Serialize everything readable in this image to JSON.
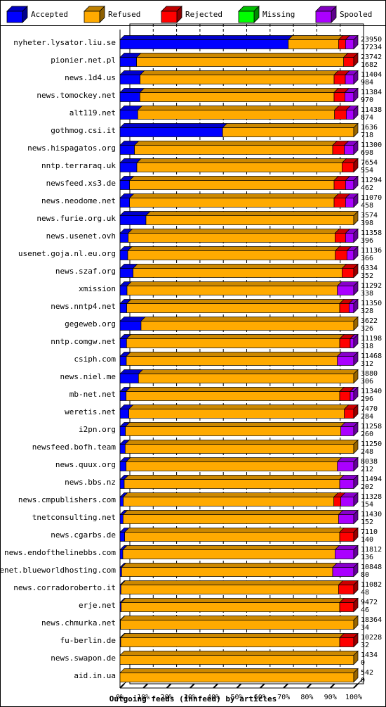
{
  "chart_data": {
    "type": "bar",
    "orientation": "horizontal",
    "stacked": true,
    "percent": true,
    "xlabel": "Outgoing feeds (innfeed) by articles",
    "xlim": [
      0,
      100
    ],
    "xticks": [
      "0%",
      "10%",
      "20%",
      "30%",
      "40%",
      "50%",
      "60%",
      "70%",
      "80%",
      "90%",
      "100%"
    ],
    "legend_position": "top",
    "legend": [
      {
        "name": "Accepted",
        "color": "#0000ff"
      },
      {
        "name": "Refused",
        "color": "#ffaa00"
      },
      {
        "name": "Rejected",
        "color": "#ff0000"
      },
      {
        "name": "Missing",
        "color": "#00ff00"
      },
      {
        "name": "Spooled",
        "color": "#aa00ff"
      }
    ],
    "rows": [
      {
        "name": "nyheter.lysator.liu.se",
        "total": 23950,
        "accepted": 17234,
        "segments": [
          72,
          21.5,
          3.0,
          0,
          3.5
        ]
      },
      {
        "name": "pionier.net.pl",
        "total": 23742,
        "accepted": 1682,
        "segments": [
          7.1,
          88.6,
          4.3,
          0,
          0
        ]
      },
      {
        "name": "news.1d4.us",
        "total": 11404,
        "accepted": 984,
        "segments": [
          8.6,
          83.0,
          4.8,
          0,
          3.6
        ]
      },
      {
        "name": "news.tomockey.net",
        "total": 11384,
        "accepted": 970,
        "segments": [
          8.5,
          83.1,
          4.6,
          0,
          3.8
        ]
      },
      {
        "name": "alt119.net",
        "total": 11438,
        "accepted": 874,
        "segments": [
          7.6,
          84.2,
          5.0,
          0,
          3.2
        ]
      },
      {
        "name": "gothmog.csi.it",
        "total": 1636,
        "accepted": 718,
        "segments": [
          43.9,
          56.1,
          0,
          0,
          0
        ]
      },
      {
        "name": "news.hispagatos.org",
        "total": 11300,
        "accepted": 698,
        "segments": [
          6.2,
          84.8,
          5.0,
          0,
          4.0
        ]
      },
      {
        "name": "nntp.terraraq.uk",
        "total": 7654,
        "accepted": 554,
        "segments": [
          7.2,
          87.8,
          5.0,
          0,
          0
        ]
      },
      {
        "name": "newsfeed.xs3.de",
        "total": 11294,
        "accepted": 462,
        "segments": [
          4.1,
          87.5,
          4.9,
          0,
          3.5
        ]
      },
      {
        "name": "news.neodome.net",
        "total": 11070,
        "accepted": 458,
        "segments": [
          4.1,
          87.5,
          4.9,
          0,
          3.5
        ]
      },
      {
        "name": "news.furie.org.uk",
        "total": 3574,
        "accepted": 398,
        "segments": [
          11.1,
          88.9,
          0,
          0,
          0
        ]
      },
      {
        "name": "news.usenet.ovh",
        "total": 11358,
        "accepted": 396,
        "segments": [
          3.5,
          88.5,
          4.5,
          0,
          3.5
        ]
      },
      {
        "name": "usenet.goja.nl.eu.org",
        "total": 11136,
        "accepted": 366,
        "segments": [
          3.3,
          88.8,
          5.0,
          0,
          2.9
        ]
      },
      {
        "name": "news.szaf.org",
        "total": 6334,
        "accepted": 352,
        "segments": [
          5.6,
          89.4,
          5.0,
          0,
          0
        ]
      },
      {
        "name": "xmission",
        "total": 11292,
        "accepted": 338,
        "segments": [
          3.0,
          90.0,
          0,
          0,
          7.0
        ]
      },
      {
        "name": "news.nntp4.net",
        "total": 11350,
        "accepted": 328,
        "segments": [
          2.9,
          91.1,
          4.0,
          0,
          2.0
        ]
      },
      {
        "name": "gegeweb.org",
        "total": 3622,
        "accepted": 326,
        "segments": [
          9.0,
          91.0,
          0,
          0,
          0
        ]
      },
      {
        "name": "nntp.comgw.net",
        "total": 11198,
        "accepted": 318,
        "segments": [
          2.8,
          91.2,
          4.5,
          0,
          1.5
        ]
      },
      {
        "name": "csiph.com",
        "total": 11468,
        "accepted": 312,
        "segments": [
          2.7,
          90.3,
          0,
          0,
          7.0
        ]
      },
      {
        "name": "news.niel.me",
        "total": 3880,
        "accepted": 306,
        "segments": [
          7.9,
          92.1,
          0,
          0,
          0
        ]
      },
      {
        "name": "mb-net.net",
        "total": 11340,
        "accepted": 296,
        "segments": [
          2.6,
          91.4,
          4.5,
          0,
          1.5
        ]
      },
      {
        "name": "weretis.net",
        "total": 7470,
        "accepted": 284,
        "segments": [
          3.8,
          92.2,
          4.0,
          0,
          0
        ]
      },
      {
        "name": "i2pn.org",
        "total": 11258,
        "accepted": 260,
        "segments": [
          2.3,
          92.2,
          0,
          0,
          5.5
        ]
      },
      {
        "name": "newsfeed.bofh.team",
        "total": 11250,
        "accepted": 248,
        "segments": [
          2.2,
          97.8,
          0,
          0,
          0
        ]
      },
      {
        "name": "news.quux.org",
        "total": 8038,
        "accepted": 212,
        "segments": [
          2.6,
          90.4,
          0,
          0,
          7.0
        ]
      },
      {
        "name": "news.bbs.nz",
        "total": 11494,
        "accepted": 202,
        "segments": [
          1.8,
          92.2,
          0,
          0,
          6.0
        ]
      },
      {
        "name": "news.cmpublishers.com",
        "total": 11328,
        "accepted": 154,
        "segments": [
          1.4,
          90.1,
          3.0,
          0,
          5.5
        ]
      },
      {
        "name": "tnetconsulting.net",
        "total": 11430,
        "accepted": 152,
        "segments": [
          1.3,
          92.2,
          0,
          0,
          6.5
        ]
      },
      {
        "name": "news.cgarbs.de",
        "total": 7110,
        "accepted": 140,
        "segments": [
          2.0,
          92.0,
          6.0,
          0,
          0
        ]
      },
      {
        "name": "news.endofthelinebbs.com",
        "total": 11812,
        "accepted": 136,
        "segments": [
          1.2,
          90.8,
          0,
          0,
          8.0
        ]
      },
      {
        "name": "usenet.blueworldhosting.com",
        "total": 10848,
        "accepted": 80,
        "segments": [
          0.7,
          90.3,
          0,
          0,
          9.0
        ]
      },
      {
        "name": "news.corradoroberto.it",
        "total": 11082,
        "accepted": 48,
        "segments": [
          0.4,
          93.1,
          6.5,
          0,
          0
        ]
      },
      {
        "name": "erje.net",
        "total": 9472,
        "accepted": 46,
        "segments": [
          0.5,
          93.5,
          6.0,
          0,
          0
        ]
      },
      {
        "name": "news.chmurka.net",
        "total": 18364,
        "accepted": 34,
        "segments": [
          0.2,
          99.8,
          0,
          0,
          0
        ]
      },
      {
        "name": "fu-berlin.de",
        "total": 10228,
        "accepted": 32,
        "segments": [
          0.3,
          93.7,
          6.0,
          0,
          0
        ]
      },
      {
        "name": "news.swapon.de",
        "total": 1434,
        "accepted": 0,
        "segments": [
          0,
          100,
          0,
          0,
          0
        ]
      },
      {
        "name": "aid.in.ua",
        "total": 542,
        "accepted": 0,
        "segments": [
          0,
          100,
          0,
          0,
          0
        ]
      }
    ]
  }
}
